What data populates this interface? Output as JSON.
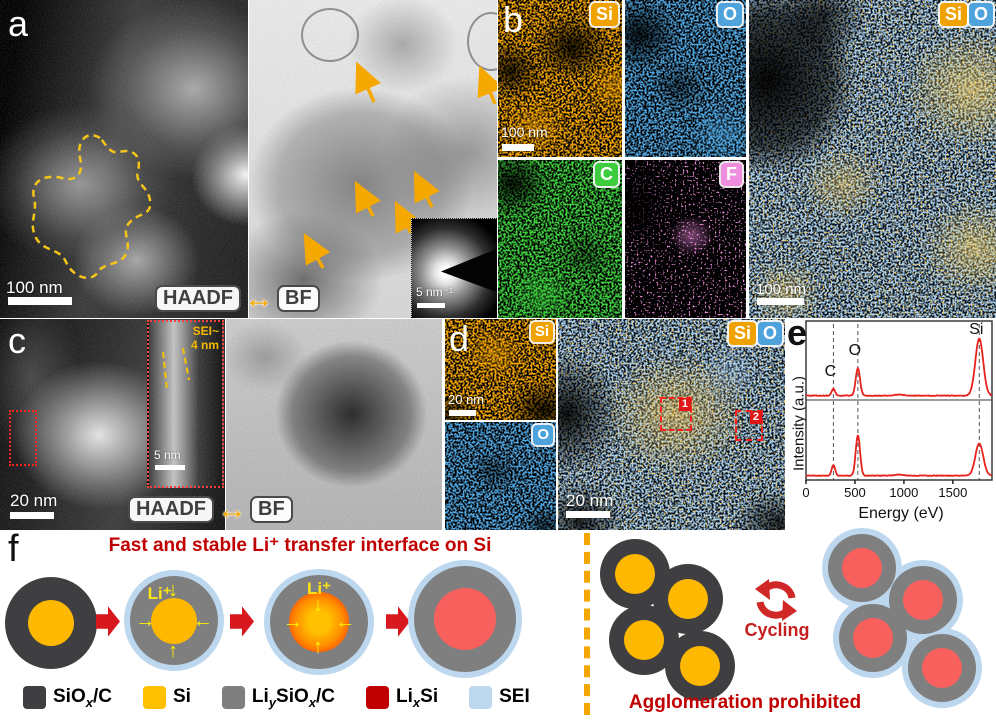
{
  "colors": {
    "si": "#F0A202",
    "o": "#4FA3DC",
    "c": "#3DCC3D",
    "f": "#EE8CDE",
    "sei": "#BDD7EE",
    "siox_c": "#3F3F42",
    "si_core": "#FFB800",
    "liysiox_c": "#7F7F7F",
    "lixsi": "#C00000",
    "lixsi_core": "#F8605E",
    "amber_annot": "#F5A800",
    "red_annot": "#D7191F",
    "dark_red_text": "#C00000"
  },
  "panel_a": {
    "label": "a",
    "scale_bar": "100 nm",
    "mode_left": "HAADF",
    "mode_right": "BF",
    "mode_arrow": "↔",
    "inset_scale_bar": "5 nm⁻¹"
  },
  "panel_b": {
    "label": "b",
    "map_si": "Si",
    "map_o": "O",
    "map_c": "C",
    "map_f": "F",
    "scale_bar": "100 nm",
    "combined": {
      "el1": "Si",
      "el2": "O",
      "scale_bar": "100 nm"
    }
  },
  "panel_c": {
    "label": "c",
    "scale_bar": "20 nm",
    "mode_left": "HAADF",
    "mode_right": "BF",
    "mode_arrow": "↔",
    "inset": {
      "label_line1": "SEI~",
      "label_line2": "4 nm",
      "scale_bar": "5 nm"
    }
  },
  "panel_d": {
    "label": "d",
    "map_si": "Si",
    "map_o": "O",
    "scale_bar_maps": "20 nm",
    "combined": {
      "el1": "Si",
      "el2": "O",
      "scale_bar": "20 nm",
      "roi_1": "1",
      "roi_2": "2"
    }
  },
  "panel_e": {
    "label": "e",
    "ylabel": "Intensity (a.u.)",
    "xlabel": "Energy (eV)"
  },
  "panel_f": {
    "label": "f",
    "title": "Fast and stable Li⁺ transfer interface on Si",
    "li_ion": "Li⁺",
    "cycling_label": "Cycling",
    "caption": "Agglomeration prohibited",
    "icons": {
      "down": "↓",
      "up": "↑",
      "left": "←",
      "right": "→"
    },
    "legend": [
      {
        "pre": "SiO",
        "sub1": "x",
        "post": "/C",
        "color": "#3F3F42"
      },
      {
        "pre": "Si",
        "color": "#FFC000"
      },
      {
        "pre": "Li",
        "sub1": "y",
        "mid": "SiO",
        "sub2": "x",
        "post": "/C",
        "color": "#7F7F7F"
      },
      {
        "pre": "Li",
        "sub1": "x",
        "mid": "Si",
        "color": "#C00000"
      },
      {
        "pre": "SEI",
        "color": "#BDD7EE"
      }
    ]
  },
  "chart_data": {
    "type": "line",
    "xlabel": "Energy (eV)",
    "ylabel": "Intensity (a.u.)",
    "xlim": [
      0,
      1900
    ],
    "xticks": [
      0,
      500,
      1000,
      1500
    ],
    "grid": false,
    "legend_position": "none",
    "series_color": "#E8221C",
    "dashed_lines_x": [
      280,
      530,
      1770
    ],
    "peak_labels": [
      {
        "text": "C",
        "x": 280
      },
      {
        "text": "O",
        "x": 530
      },
      {
        "text": "Si",
        "x": 1770
      }
    ],
    "series": [
      {
        "name": "spectrum-roi-1",
        "peaks": [
          {
            "center": 280,
            "height": 0.12,
            "width": 18
          },
          {
            "center": 530,
            "height": 0.48,
            "width": 22
          },
          {
            "center": 950,
            "height": 0.02,
            "width": 45
          },
          {
            "center": 1770,
            "height": 1.0,
            "width": 40
          }
        ]
      },
      {
        "name": "spectrum-roi-2",
        "peaks": [
          {
            "center": 280,
            "height": 0.2,
            "width": 18
          },
          {
            "center": 530,
            "height": 0.78,
            "width": 22
          },
          {
            "center": 950,
            "height": 0.02,
            "width": 45
          },
          {
            "center": 1770,
            "height": 0.62,
            "width": 40
          }
        ]
      }
    ]
  }
}
